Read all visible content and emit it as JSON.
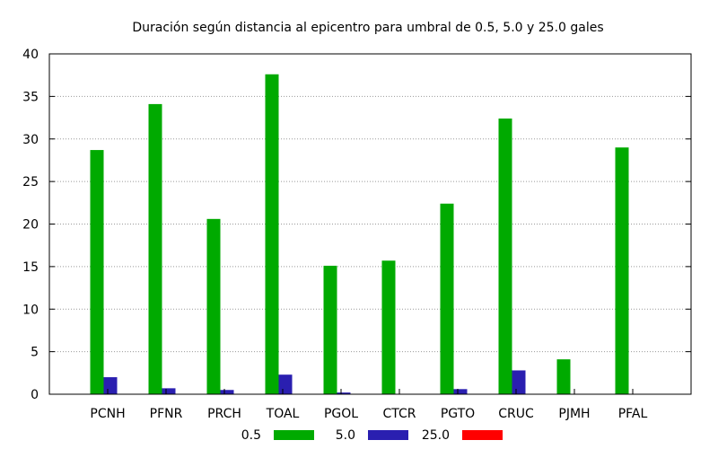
{
  "chart_data": {
    "type": "bar",
    "title": "Duración según distancia al epicentro para umbral de 0.5, 5.0 y 25.0 gales",
    "categories": [
      "PCNH",
      "PFNR",
      "PRCH",
      "TOAL",
      "PGOL",
      "CTCR",
      "PGTO",
      "CRUC",
      "PJMH",
      "PFAL"
    ],
    "series": [
      {
        "name": "0.5",
        "color": "#00aa00",
        "values": [
          28.7,
          34.1,
          20.6,
          37.6,
          15.1,
          15.7,
          22.4,
          32.4,
          4.1,
          29.0
        ]
      },
      {
        "name": "5.0",
        "color": "#2a1fb0",
        "values": [
          2.0,
          0.7,
          0.5,
          2.3,
          0.2,
          0.0,
          0.6,
          2.8,
          0.0,
          0.0
        ]
      },
      {
        "name": "25.0",
        "color": "#ff0000",
        "values": [
          0,
          0,
          0,
          0,
          0,
          0,
          0,
          0,
          0,
          0
        ]
      }
    ],
    "ylim": [
      0,
      40
    ],
    "yticks": [
      0,
      5,
      10,
      15,
      20,
      25,
      30,
      35,
      40
    ],
    "grid": true,
    "legend_position": "bottom"
  }
}
